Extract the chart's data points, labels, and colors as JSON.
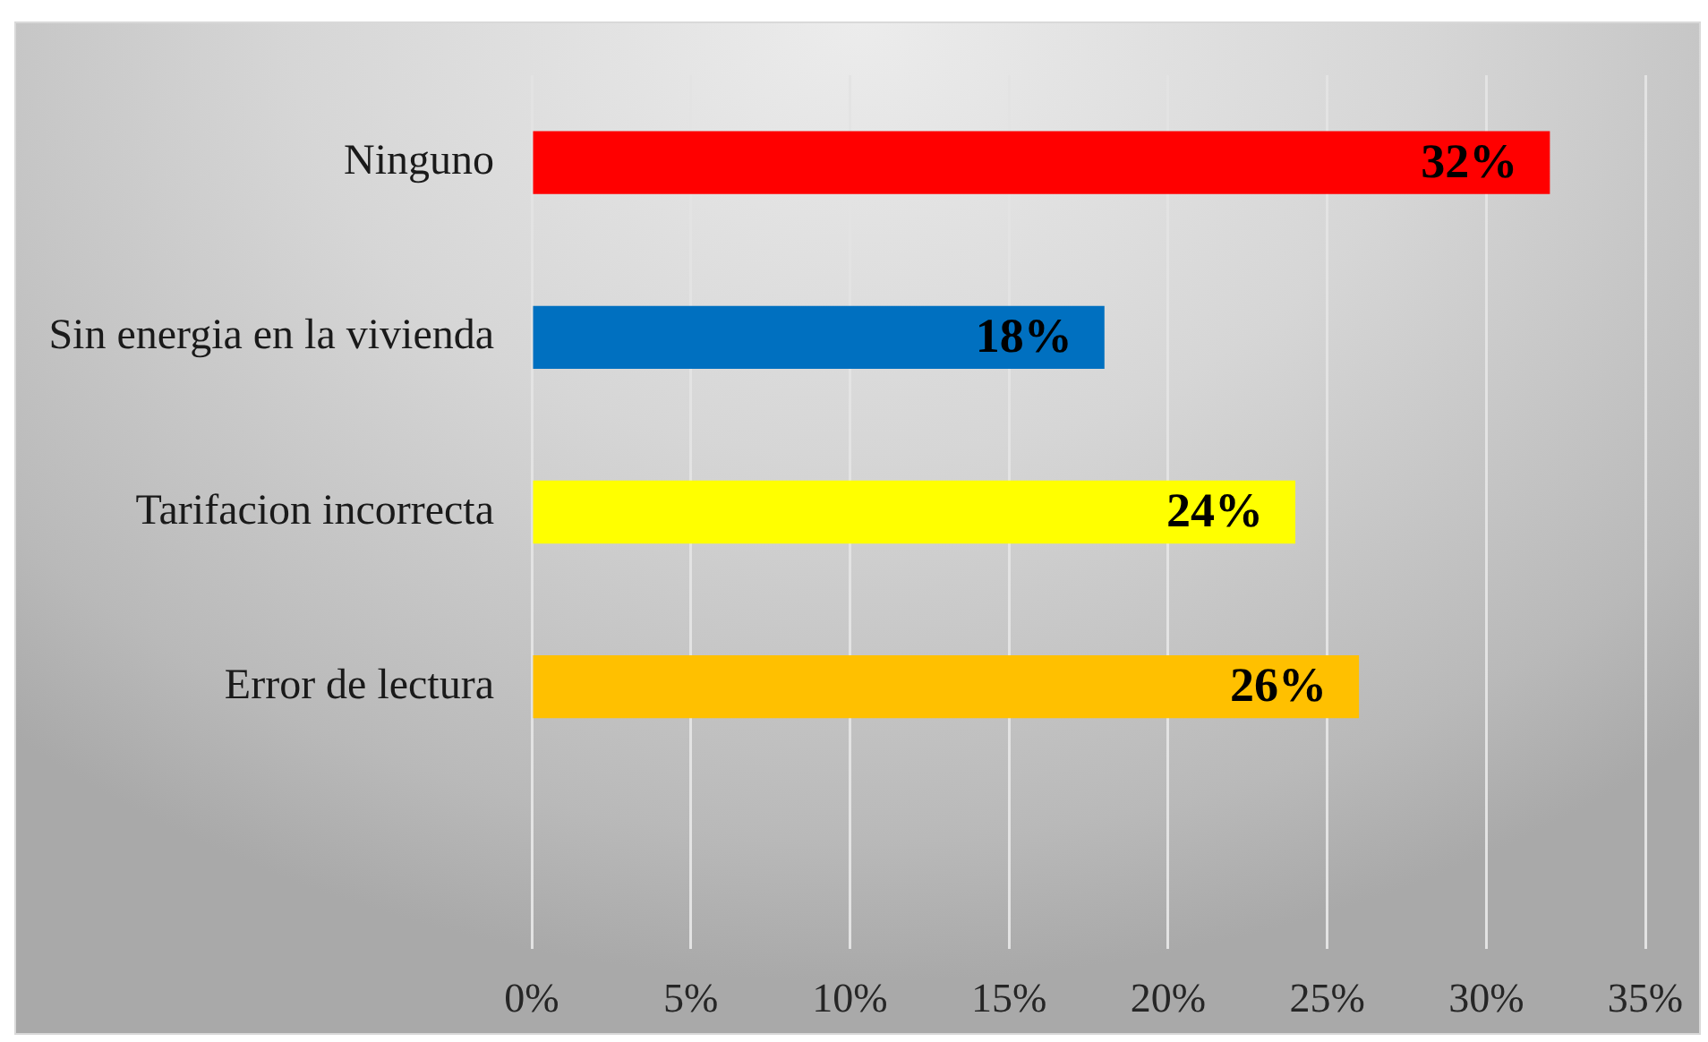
{
  "chart_data": {
    "type": "bar",
    "orientation": "horizontal",
    "categories": [
      "Ninguno",
      "Sin energia en la vivienda",
      "Tarifacion incorrecta",
      "Error de lectura",
      null
    ],
    "values": [
      32,
      18,
      24,
      26,
      null
    ],
    "colors": [
      "#ff0000",
      "#0070c0",
      "#ffff00",
      "#ffc000",
      null
    ],
    "value_labels": [
      "32%",
      "18%",
      "24%",
      "26%",
      null
    ],
    "xlim": [
      0,
      35
    ],
    "xticks": [
      {
        "value": 0,
        "label": "0%"
      },
      {
        "value": 5,
        "label": "5%"
      },
      {
        "value": 10,
        "label": "10%"
      },
      {
        "value": 15,
        "label": "15%"
      },
      {
        "value": 20,
        "label": "20%"
      },
      {
        "value": 25,
        "label": "25%"
      },
      {
        "value": 30,
        "label": "30%"
      },
      {
        "value": 35,
        "label": "35%"
      }
    ],
    "grid": "x",
    "legend": false
  }
}
